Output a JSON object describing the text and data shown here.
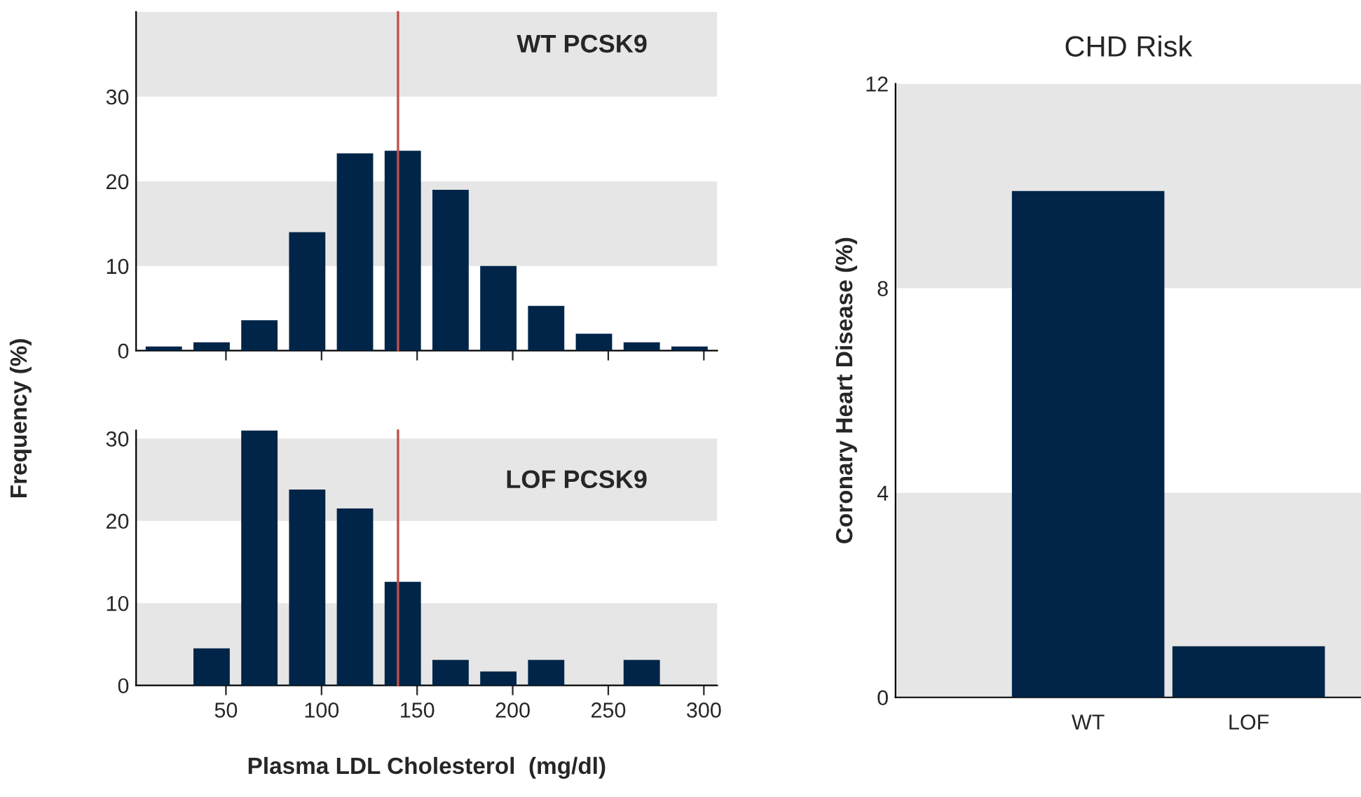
{
  "chart_data": [
    {
      "type": "histogram",
      "bins": [
        5,
        30,
        55,
        80,
        105,
        130,
        155,
        180,
        205,
        230,
        255,
        280,
        305
      ],
      "values": [
        0.5,
        1,
        3.6,
        14,
        23.3,
        23.6,
        19,
        10,
        5.3,
        2,
        1,
        0.5
      ],
      "color": "#002548",
      "xlim": [
        3,
        307
      ],
      "xticks": [
        50,
        100,
        150,
        200,
        250,
        300
      ],
      "ylim": [
        0,
        40
      ],
      "yticks": [
        0,
        10,
        20,
        30
      ],
      "tick_labels": "y",
      "ylabel": "Frequency (%)",
      "annotations": [
        "WT PCSK9"
      ],
      "ref_lines": [
        {
          "axis": "x",
          "value": 140,
          "color": "#c0504d"
        }
      ],
      "bands": [
        {
          "axis": "y",
          "from": 10,
          "to": 20,
          "color": "#e6e6e6"
        },
        {
          "axis": "y",
          "from": 30,
          "to": 40,
          "color": "#e6e6e6"
        }
      ],
      "grid": false
    },
    {
      "type": "histogram",
      "bins": [
        5,
        30,
        55,
        80,
        105,
        130,
        155,
        180,
        205,
        230,
        255,
        280,
        305
      ],
      "values": [
        0,
        4.5,
        31,
        23.8,
        21.5,
        12.6,
        3.1,
        1.7,
        3.1,
        0,
        3.1,
        0
      ],
      "color": "#002548",
      "xlim": [
        3,
        307
      ],
      "xticks": [
        50,
        100,
        150,
        200,
        250,
        300
      ],
      "ylim": [
        0,
        31
      ],
      "yticks": [
        0,
        10,
        20,
        30
      ],
      "xlabel": "Plasma LDL Cholesterol  (mg/dl)",
      "annotations": [
        "LOF PCSK9"
      ],
      "ref_lines": [
        {
          "axis": "x",
          "value": 140,
          "color": "#c0504d"
        }
      ],
      "bands": [
        {
          "axis": "y",
          "from": 0,
          "to": 10,
          "color": "#e6e6e6"
        },
        {
          "axis": "y",
          "from": 20,
          "to": 30,
          "color": "#e6e6e6"
        }
      ],
      "grid": false
    },
    {
      "type": "bar",
      "title": "CHD Risk",
      "ylabel": "Coronary Heart Disease (%)",
      "categories": [
        "WT",
        "LOF"
      ],
      "values": [
        9.9,
        1.0
      ],
      "color": "#002548",
      "ylim": [
        0,
        12
      ],
      "yticks": [
        0,
        4,
        8,
        12
      ],
      "bands": [
        {
          "axis": "y",
          "from": 0,
          "to": 4,
          "color": "#e6e6e6"
        },
        {
          "axis": "y",
          "from": 8,
          "to": 12,
          "color": "#e6e6e6"
        }
      ],
      "grid": false
    }
  ]
}
